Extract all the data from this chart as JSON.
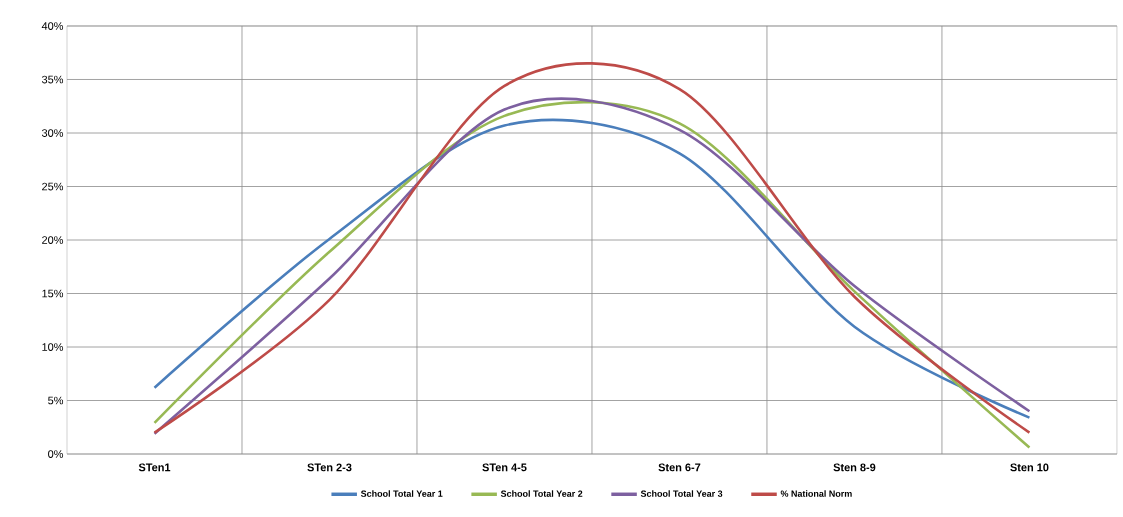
{
  "chart_data": {
    "type": "line",
    "categories": [
      "STen1",
      "STen 2-3",
      "STen 4-5",
      "Sten 6-7",
      "Sten 8-9",
      "Sten 10"
    ],
    "series": [
      {
        "name": "School Total Year 1",
        "color": "#4a7ebb",
        "values": [
          6.2,
          20.1,
          30.7,
          28.1,
          11.9,
          3.4
        ]
      },
      {
        "name": "School Total Year 2",
        "color": "#98b954",
        "values": [
          2.9,
          18.9,
          31.6,
          30.9,
          15.2,
          0.6
        ]
      },
      {
        "name": "School Total Year 3",
        "color": "#7d60a0",
        "values": [
          1.9,
          16.4,
          32.2,
          30.3,
          15.7,
          4.0
        ]
      },
      {
        "name": "% National Norm",
        "color": "#be4b48",
        "values": [
          2.0,
          14.4,
          34.4,
          34.1,
          14.7,
          2.0
        ]
      }
    ],
    "ylim": [
      0,
      40
    ],
    "yticks": [
      {
        "value": 0,
        "label": "0%"
      },
      {
        "value": 5,
        "label": "5%"
      },
      {
        "value": 10,
        "label": "10%"
      },
      {
        "value": 15,
        "label": "15%"
      },
      {
        "value": 20,
        "label": "20%"
      },
      {
        "value": 25,
        "label": "25%"
      },
      {
        "value": 30,
        "label": "30%"
      },
      {
        "value": 35,
        "label": "35%"
      },
      {
        "value": 40,
        "label": "40%"
      }
    ],
    "grid": true,
    "legend": "bottom",
    "marker": "none",
    "line_style": "solid"
  }
}
